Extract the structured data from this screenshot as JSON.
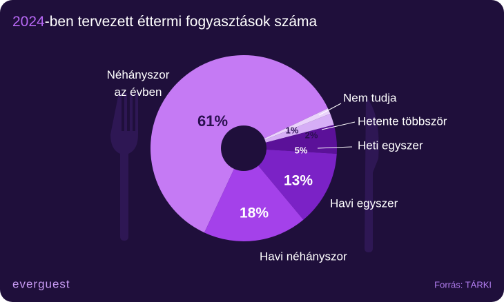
{
  "chart_data": {
    "type": "pie",
    "title": {
      "highlight": "2024",
      "rest": "-ben tervezett éttermi fogyasztások száma"
    },
    "categories": [
      "Néhányszor az évben",
      "Nem tudja",
      "Hetente többször",
      "Heti egyszer",
      "Havi egyszer",
      "Havi néhányszor"
    ],
    "values": [
      61,
      1,
      2,
      5,
      13,
      18
    ],
    "value_labels": [
      "61%",
      "1%",
      "2%",
      "5%",
      "13%",
      "18%"
    ],
    "colors": [
      "#c57af4",
      "#ead3fb",
      "#d6aef6",
      "#5b1199",
      "#7b22c6",
      "#a441ea"
    ],
    "brand": "everguest",
    "source": "Forrás: TÁRKI"
  }
}
